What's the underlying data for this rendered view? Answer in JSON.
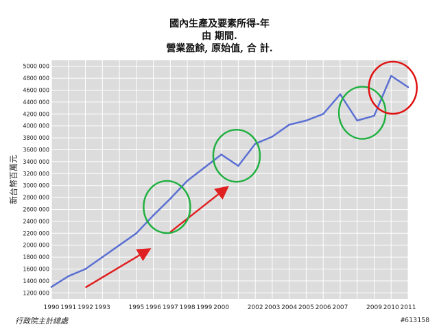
{
  "source_note": "行政院主計總處",
  "watermark": "#613158",
  "colors": {
    "plot_bg": "#dcdcdc",
    "grid": "#ffffff",
    "line": "#5a6fd2",
    "arrow": "#e02020",
    "circle_green": "#20b040",
    "circle_red": "#e01010"
  },
  "chart_data": {
    "type": "line",
    "title": [
      "國內生產及要素所得-年",
      "由 期間.",
      "營業盈餘, 原始值, 合 計."
    ],
    "xlabel": "",
    "ylabel": "新台幣百萬元",
    "x_tick_labels": [
      "1990",
      "1991",
      "1992",
      "1993",
      "1995",
      "1996",
      "1997",
      "1998",
      "1999",
      "2000",
      "2002",
      "2003",
      "2004",
      "2005",
      "2006",
      "2007",
      "2009",
      "2010",
      "2011"
    ],
    "y_tick_labels": [
      "1200 000",
      "1400 000",
      "1600 000",
      "1800 000",
      "2000 000",
      "2200 000",
      "2400 000",
      "2600 000",
      "2800 000",
      "3000 000",
      "3200 000",
      "3400 000",
      "3600 000",
      "3800 000",
      "4000 000",
      "4200 000",
      "4400 000",
      "4600 000",
      "4800 000",
      "5000 000"
    ],
    "ylim": [
      1100000,
      5100000
    ],
    "xlim": [
      1990,
      2011
    ],
    "grid": true,
    "series": [
      {
        "x": [
          1990,
          1991,
          1992,
          1993,
          1994,
          1995,
          1996,
          1997,
          1998,
          1999,
          2000,
          2001,
          2002,
          2003,
          2004,
          2005,
          2006,
          2007,
          2008,
          2009,
          2010,
          2011
        ],
        "values": [
          1300000,
          1480000,
          1600000,
          1800000,
          2000000,
          2200000,
          2500000,
          2780000,
          3080000,
          3300000,
          3520000,
          3330000,
          3700000,
          3820000,
          4020000,
          4090000,
          4200000,
          4530000,
          4090000,
          4170000,
          4840000,
          4650000
        ]
      }
    ],
    "annotations": [
      {
        "type": "arrow",
        "color": "red",
        "from": [
          1992.0,
          1290000
        ],
        "to": [
          1995.7,
          1920000
        ]
      },
      {
        "type": "arrow",
        "color": "red",
        "from": [
          1997.0,
          2220000
        ],
        "to": [
          2000.3,
          2960000
        ]
      },
      {
        "type": "circle",
        "color": "green",
        "center": [
          1996.8,
          2640000
        ]
      },
      {
        "type": "circle",
        "color": "green",
        "center": [
          2000.9,
          3500000
        ]
      },
      {
        "type": "circle",
        "color": "green",
        "center": [
          2008.3,
          4220000
        ]
      },
      {
        "type": "circle",
        "color": "red",
        "center": [
          2010.1,
          4640000
        ]
      }
    ]
  }
}
